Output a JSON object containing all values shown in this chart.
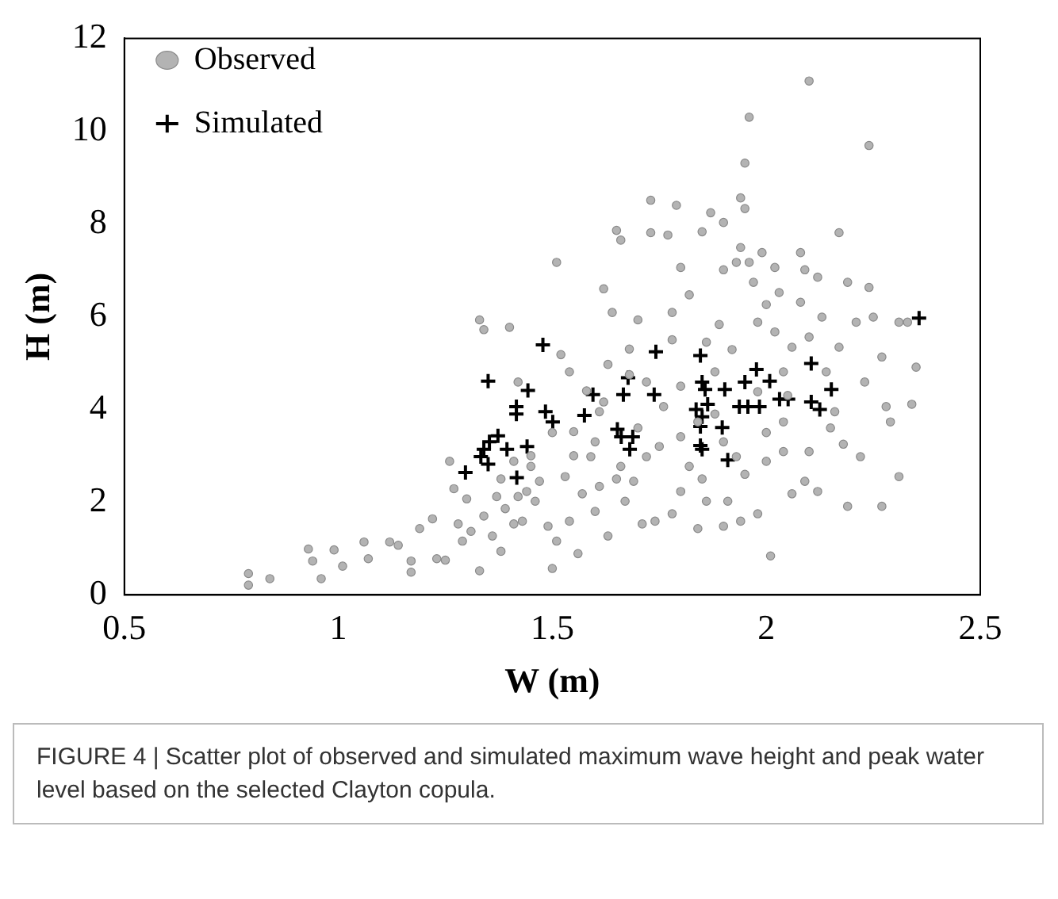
{
  "chart_data": {
    "type": "scatter",
    "xlabel": "W (m)",
    "ylabel": "H (m)",
    "xlim": [
      0.5,
      2.5
    ],
    "ylim": [
      0,
      12
    ],
    "xticks": [
      0.5,
      1,
      1.5,
      2,
      2.5
    ],
    "yticks": [
      0,
      2,
      4,
      6,
      8,
      10,
      12
    ],
    "grid": false,
    "legend": "top left",
    "annotations": [
      "FIGURE 4 | Scatter plot of observed and simulated maximum wave height and peak water level based on the selected Clayton copula."
    ],
    "series": [
      {
        "name": "Observed",
        "color": "#b3b3b3",
        "marker": "circle",
        "x": [
          0.79,
          0.79,
          0.84,
          0.93,
          0.94,
          0.96,
          0.99,
          1.01,
          1.06,
          1.07,
          1.12,
          1.14,
          1.17,
          1.17,
          1.19,
          1.22,
          1.23,
          1.25,
          1.26,
          1.27,
          1.28,
          1.29,
          1.3,
          1.31,
          1.33,
          1.33,
          1.34,
          1.34,
          1.36,
          1.37,
          1.38,
          1.39,
          1.4,
          1.41,
          1.41,
          1.42,
          1.43,
          1.44,
          1.45,
          1.46,
          1.47,
          1.49,
          1.5,
          1.51,
          1.51,
          1.52,
          1.53,
          1.54,
          1.55,
          1.56,
          1.57,
          1.59,
          1.61,
          1.61,
          1.62,
          1.63,
          1.63,
          1.64,
          1.65,
          1.66,
          1.66,
          1.67,
          1.68,
          1.69,
          1.7,
          1.71,
          1.72,
          1.73,
          1.73,
          1.74,
          1.76,
          1.77,
          1.78,
          1.78,
          1.79,
          1.8,
          1.8,
          1.82,
          1.82,
          1.84,
          1.84,
          1.85,
          1.86,
          1.86,
          1.87,
          1.88,
          1.89,
          1.9,
          1.9,
          1.9,
          1.91,
          1.92,
          1.93,
          1.94,
          1.94,
          1.95,
          1.95,
          1.96,
          1.96,
          1.97,
          1.98,
          1.98,
          1.99,
          2,
          2,
          2.01,
          2.02,
          2.02,
          2.03,
          2.04,
          2.04,
          2.06,
          2.06,
          2.08,
          2.08,
          2.09,
          2.1,
          2.1,
          2.1,
          2.12,
          2.12,
          2.13,
          2.14,
          2.16,
          2.17,
          2.17,
          2.18,
          2.19,
          2.19,
          2.21,
          2.22,
          2.23,
          2.24,
          2.24,
          2.25,
          2.27,
          2.27,
          2.28,
          2.29,
          2.31,
          2.31,
          2.33,
          2.34,
          2.35,
          1.98,
          2.04,
          1.72,
          1.62,
          1.54,
          1.42,
          1.93,
          1.8,
          1.94,
          2.09,
          1.55,
          1.6,
          1.7,
          1.75,
          1.8,
          1.9,
          2,
          1.65,
          1.5,
          1.45,
          1.38,
          1.58,
          1.68,
          1.78,
          1.88,
          2.05,
          2.15,
          1.95,
          1.85,
          1.6
        ],
        "values": [
          0.21,
          0.46,
          0.35,
          0.99,
          0.73,
          0.35,
          0.97,
          0.62,
          1.14,
          0.78,
          1.14,
          1.07,
          0.49,
          0.73,
          1.43,
          1.64,
          0.78,
          0.75,
          2.88,
          2.29,
          1.53,
          1.16,
          2.07,
          1.37,
          0.52,
          5.93,
          5.72,
          1.7,
          1.27,
          2.12,
          0.94,
          1.86,
          5.77,
          2.88,
          1.53,
          2.12,
          1.59,
          2.23,
          2.77,
          2.02,
          2.45,
          1.48,
          0.57,
          7.17,
          1.16,
          5.18,
          2.55,
          1.59,
          3.52,
          0.89,
          2.18,
          2.98,
          3.95,
          2.34,
          6.6,
          4.97,
          1.27,
          6.09,
          7.86,
          7.65,
          2.77,
          2.02,
          4.75,
          2.45,
          5.93,
          1.53,
          2.98,
          7.81,
          8.51,
          1.59,
          4.06,
          7.76,
          1.75,
          6.09,
          8.4,
          2.23,
          7.06,
          6.47,
          2.77,
          3.73,
          1.43,
          7.83,
          5.45,
          2.02,
          8.24,
          4.81,
          5.83,
          8.03,
          7.01,
          1.48,
          2.02,
          5.29,
          7.17,
          7.49,
          8.56,
          8.33,
          9.31,
          7.17,
          10.3,
          6.74,
          5.88,
          1.75,
          7.38,
          2.88,
          6.26,
          0.84,
          7.06,
          5.67,
          6.52,
          4.81,
          3.73,
          2.18,
          5.34,
          7.38,
          6.31,
          7.01,
          3.09,
          11.08,
          5.56,
          6.85,
          2.23,
          5.99,
          4.81,
          3.95,
          7.81,
          5.34,
          3.25,
          1.91,
          6.74,
          5.88,
          2.98,
          4.59,
          9.69,
          6.63,
          5.99,
          5.13,
          1.91,
          4.06,
          3.73,
          5.88,
          2.55,
          5.88,
          4.11,
          4.91,
          4.38,
          3.09,
          4.59,
          4.16,
          4.81,
          4.59,
          2.98,
          3.41,
          1.59,
          2.45,
          3,
          3.3,
          3.6,
          3.2,
          4.5,
          3.3,
          3.5,
          2.5,
          3.5,
          3,
          2.5,
          4.4,
          5.3,
          5.5,
          3.9,
          4.3,
          3.6,
          2.6,
          2.5,
          1.8
        ]
      },
      {
        "name": "Simulated",
        "color": "#000000",
        "marker": "cross",
        "x": [
          2.357,
          1.478,
          1.742,
          1.846,
          1.35,
          1.677,
          2.105,
          1.977,
          2.008,
          1.85,
          1.857,
          1.443,
          1.595,
          1.666,
          1.738,
          1.903,
          1.95,
          2.152,
          2.031,
          2.051,
          2.105,
          2.125,
          1.957,
          1.984,
          1.937,
          1.836,
          1.416,
          1.416,
          1.484,
          1.501,
          1.575,
          1.85,
          1.846,
          1.897,
          1.652,
          1.688,
          1.661,
          1.681,
          1.846,
          1.85,
          1.91,
          1.373,
          1.353,
          1.34,
          1.394,
          1.441,
          1.333,
          1.35,
          1.297,
          1.417,
          1.863
        ],
        "values": [
          5.97,
          5.39,
          5.24,
          5.16,
          4.61,
          4.68,
          4.99,
          4.86,
          4.61,
          4.59,
          4.43,
          4.41,
          4.32,
          4.32,
          4.32,
          4.43,
          4.59,
          4.43,
          4.22,
          4.22,
          4.16,
          4,
          4.06,
          4.06,
          4.06,
          4,
          4.06,
          3.9,
          3.95,
          3.73,
          3.87,
          3.84,
          3.63,
          3.61,
          3.57,
          3.41,
          3.41,
          3.14,
          3.22,
          3.14,
          2.91,
          3.43,
          3.3,
          3.14,
          3.14,
          3.2,
          2.98,
          2.82,
          2.64,
          2.53,
          4.11
        ]
      }
    ]
  }
}
